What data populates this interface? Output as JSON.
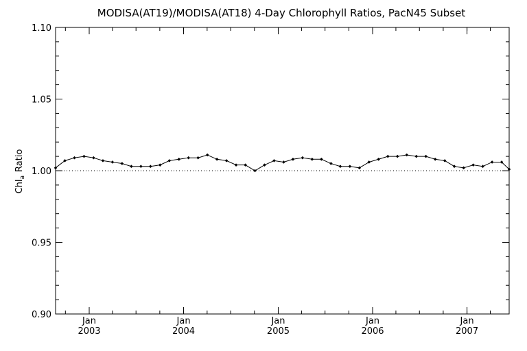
{
  "chart_data": {
    "type": "line",
    "title": "MODISA(AT19)/MODISA(AT18) 4-Day Chlorophyll Ratios, PacN45 Subset",
    "ylabel": "Chl_a Ratio",
    "ylabel_main": "Chl",
    "ylabel_sub": "a",
    "ylabel_tail": "Ratio",
    "xlabel": "",
    "ylim": [
      0.9,
      1.1
    ],
    "yticks": [
      0.9,
      0.95,
      1.0,
      1.05,
      1.1
    ],
    "ytick_labels": [
      "0.90",
      "0.95",
      "1.00",
      "1.05",
      "1.10"
    ],
    "xlim": [
      "2002-08-24",
      "2007-06-13"
    ],
    "xticks": [
      {
        "date": "2003-01-01",
        "month": "Jan",
        "year": "2003"
      },
      {
        "date": "2004-01-01",
        "month": "Jan",
        "year": "2004"
      },
      {
        "date": "2005-01-01",
        "month": "Jan",
        "year": "2005"
      },
      {
        "date": "2006-01-01",
        "month": "Jan",
        "year": "2006"
      },
      {
        "date": "2007-01-01",
        "month": "Jan",
        "year": "2007"
      }
    ],
    "reference_line": {
      "y": 1.0,
      "style": "dotted"
    },
    "grid": false,
    "series": [
      {
        "marker": "diamond",
        "x": [
          "2002-08-24",
          "2002-09-29",
          "2002-11-05",
          "2002-12-12",
          "2003-01-18",
          "2003-02-23",
          "2003-04-01",
          "2003-05-08",
          "2003-06-13",
          "2003-07-20",
          "2003-08-26",
          "2003-10-02",
          "2003-11-07",
          "2003-12-14",
          "2004-01-20",
          "2004-02-26",
          "2004-04-02",
          "2004-05-09",
          "2004-06-15",
          "2004-07-22",
          "2004-08-27",
          "2004-10-03",
          "2004-11-09",
          "2004-12-16",
          "2005-01-22",
          "2005-02-27",
          "2005-04-05",
          "2005-05-12",
          "2005-06-17",
          "2005-07-24",
          "2005-08-29",
          "2005-10-05",
          "2005-11-11",
          "2005-12-18",
          "2006-01-24",
          "2006-03-01",
          "2006-04-07",
          "2006-05-13",
          "2006-06-19",
          "2006-07-26",
          "2006-08-31",
          "2006-10-07",
          "2006-11-13",
          "2006-12-19",
          "2007-01-25",
          "2007-03-03",
          "2007-04-08",
          "2007-05-15",
          "2007-06-13"
        ],
        "y": [
          1.002,
          1.007,
          1.009,
          1.01,
          1.009,
          1.007,
          1.006,
          1.005,
          1.003,
          1.003,
          1.003,
          1.004,
          1.007,
          1.008,
          1.009,
          1.009,
          1.011,
          1.008,
          1.007,
          1.004,
          1.004,
          1.0,
          1.004,
          1.007,
          1.006,
          1.008,
          1.009,
          1.008,
          1.008,
          1.005,
          1.003,
          1.003,
          1.002,
          1.006,
          1.008,
          1.01,
          1.01,
          1.011,
          1.01,
          1.01,
          1.008,
          1.007,
          1.003,
          1.002,
          1.004,
          1.003,
          1.006,
          1.006,
          1.001
        ]
      }
    ]
  }
}
